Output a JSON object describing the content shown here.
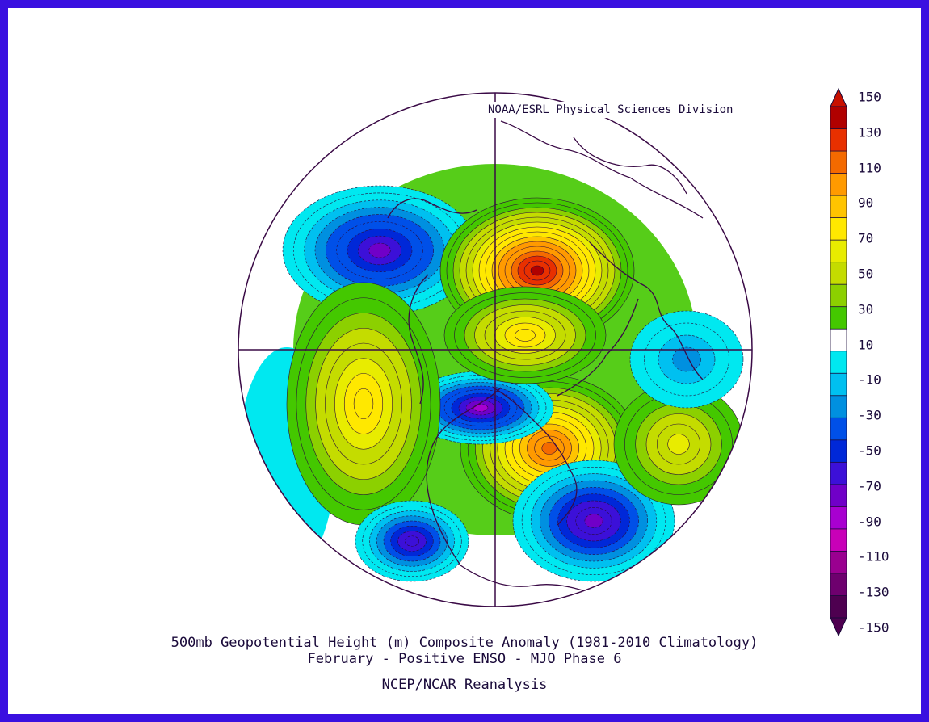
{
  "credit": "NOAA/ESRL Physical Sciences Division",
  "title": {
    "line1": "500mb Geopotential Height (m) Composite Anomaly (1981-2010 Climatology)",
    "line2": "February - Positive ENSO - MJO Phase 6",
    "line3": "NCEP/NCAR Reanalysis"
  },
  "map": {
    "projection": "north polar stereographic",
    "variable": "500mb geopotential height anomaly",
    "units": "m",
    "features": [
      {
        "name": "north-pacific-low",
        "value": -85
      },
      {
        "name": "ural-ridge",
        "value": 145
      },
      {
        "name": "greenland-ridge",
        "value": 115
      },
      {
        "name": "canada-trough",
        "value": -95
      },
      {
        "name": "north-atlantic-trough",
        "value": -90
      },
      {
        "name": "gulf-of-alaska-ridge",
        "value": 80
      },
      {
        "name": "east-pacific-low",
        "value": -80
      },
      {
        "name": "mongolia-ridge",
        "value": 60
      },
      {
        "name": "east-asia-low",
        "value": -40
      },
      {
        "name": "eastern-europe-ridge",
        "value": 80
      }
    ]
  },
  "colorbar": {
    "labels": [
      "150",
      "130",
      "110",
      "90",
      "70",
      "50",
      "30",
      "10",
      "-10",
      "-30",
      "-50",
      "-70",
      "-90",
      "-110",
      "-130",
      "-150"
    ],
    "colors": [
      "#b00000",
      "#e83000",
      "#f46a00",
      "#ff9a00",
      "#ffc400",
      "#ffe800",
      "#e8ec00",
      "#c4dc00",
      "#8cd000",
      "#44c800",
      "#ffffff",
      "#00e8f0",
      "#00c0f0",
      "#0090e0",
      "#0050e8",
      "#0028d8",
      "#3c10d8",
      "#7000c8",
      "#a800d0",
      "#c800b8",
      "#9a0090",
      "#6e006e",
      "#4e0050"
    ]
  }
}
